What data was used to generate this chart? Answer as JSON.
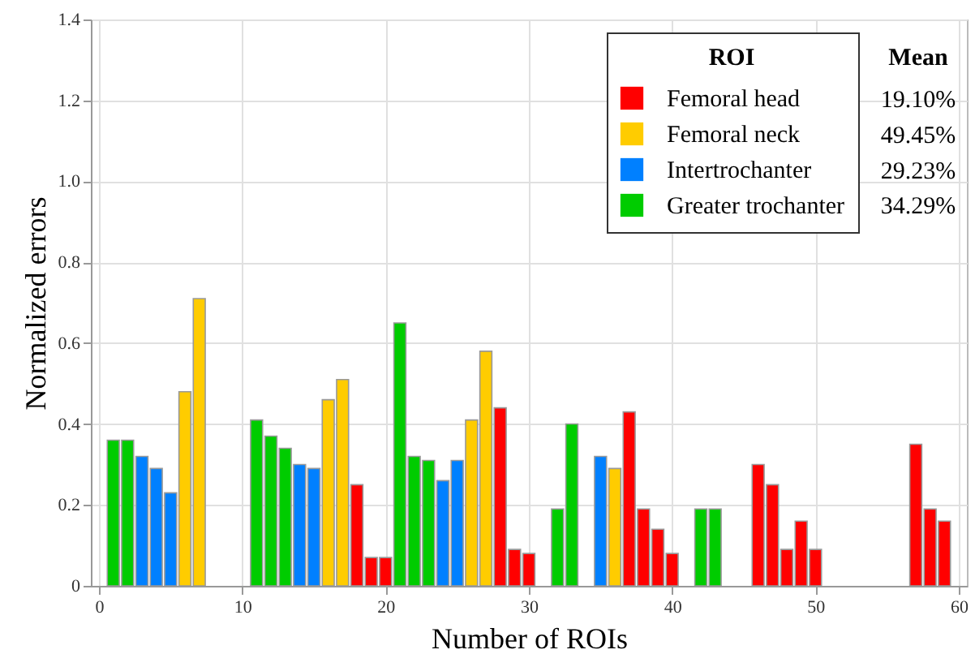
{
  "chart_data": {
    "type": "bar",
    "xlabel": "Number of ROIs",
    "ylabel": "Normalized errors",
    "legend_title": "ROI",
    "xlim": [
      0,
      60
    ],
    "xticks": [
      0,
      10,
      20,
      30,
      40,
      50,
      60
    ],
    "ylim": [
      0,
      1.4
    ],
    "yticks": [
      0,
      0.2,
      0.4,
      0.6,
      0.8,
      {
        "value": 1,
        "label": "1.0"
      },
      1.2,
      1.4
    ],
    "grid": true,
    "legend": "top right",
    "annotations": [
      "Mean",
      "19.10%",
      "49.45%",
      "29.23%",
      "34.29%"
    ],
    "series": [
      {
        "name": "Femoral head",
        "color": "#ff0000",
        "x": [
          18,
          19,
          20,
          28,
          29,
          30,
          37,
          38,
          39,
          40,
          46,
          47,
          48,
          49,
          50,
          57,
          58,
          59
        ],
        "values": [
          0.25,
          0.07,
          0.07,
          0.44,
          0.09,
          0.08,
          0.43,
          0.19,
          0.14,
          0.08,
          0.3,
          0.25,
          0.09,
          0.16,
          0.09,
          0.35,
          0.19,
          0.16
        ]
      },
      {
        "name": "Femoral neck",
        "color": "#ffcc00",
        "x": [
          6,
          7,
          16,
          17,
          26,
          27,
          36
        ],
        "values": [
          0.48,
          0.71,
          0.46,
          0.51,
          0.41,
          0.58,
          0.29
        ]
      },
      {
        "name": "Intertrochanter",
        "color": "#0080ff",
        "x": [
          3,
          4,
          5,
          14,
          15,
          24,
          25,
          35
        ],
        "values": [
          0.32,
          0.29,
          0.23,
          0.3,
          0.29,
          0.26,
          0.31,
          0.32
        ]
      },
      {
        "name": "Greater trochanter",
        "color": "#00cc00",
        "x": [
          1,
          2,
          11,
          12,
          13,
          21,
          22,
          23,
          32,
          33,
          42,
          43
        ],
        "values": [
          0.36,
          0.36,
          0.41,
          0.37,
          0.34,
          0.65,
          0.32,
          0.31,
          0.19,
          0.4,
          0.19,
          0.19
        ]
      }
    ]
  }
}
